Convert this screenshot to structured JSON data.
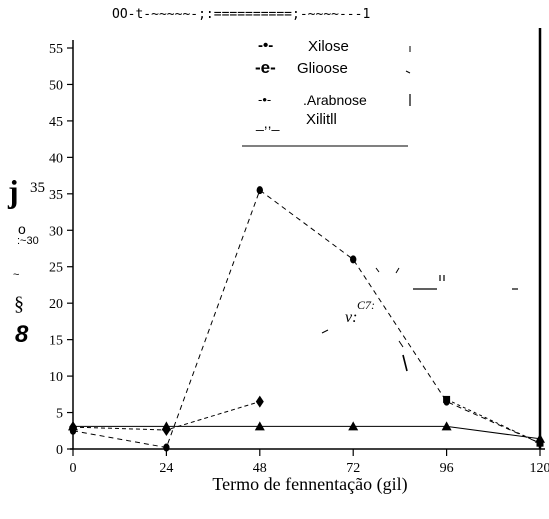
{
  "header_text": "OO-t-~~~~~-;:==========;-~~~~---1",
  "chart_data": {
    "type": "line",
    "xlabel": "Termo de fennentação (gil)",
    "ylabel_glyphs": [
      "j",
      "35",
      "o",
      ":~30",
      "~",
      "§",
      "8"
    ],
    "x_ticks": [
      "0",
      "24",
      "48",
      "72",
      "96",
      "120"
    ],
    "y_ticks": [
      "0",
      "5",
      "10",
      "15",
      "20",
      "25",
      "30",
      "35",
      "40",
      "45",
      "50",
      "55"
    ],
    "xlim": [
      0,
      120
    ],
    "ylim": [
      0,
      55
    ],
    "legend": [
      {
        "prefix": "-•-",
        "label": "Xilose"
      },
      {
        "prefix": "-e-",
        "label": "Glioose"
      },
      {
        "prefix": "-•-",
        "label": ".Arabnose"
      },
      {
        "prefix": "_,,_",
        "label": "Xilitll"
      }
    ],
    "annotation": "v:",
    "annotation_sup": "C7:",
    "series": [
      {
        "marker": "circle",
        "color": "#000000",
        "x": [
          0,
          24,
          48,
          72,
          96,
          120
        ],
        "y": [
          2.5,
          0.2,
          35.5,
          26,
          6.5,
          0.8
        ]
      },
      {
        "marker": "diamond",
        "color": "#000000",
        "x": [
          0,
          24,
          48
        ],
        "y": [
          3,
          2.6,
          6.5
        ]
      },
      {
        "marker": "square",
        "color": "#000000",
        "x": [
          96,
          120
        ],
        "y": [
          6.8,
          0.8
        ]
      },
      {
        "marker": "triangle",
        "color": "#000000",
        "x": [
          0,
          24,
          48,
          72,
          96,
          120
        ],
        "y": [
          3.1,
          3.1,
          3.1,
          3.1,
          3.1,
          1.4
        ]
      }
    ]
  }
}
